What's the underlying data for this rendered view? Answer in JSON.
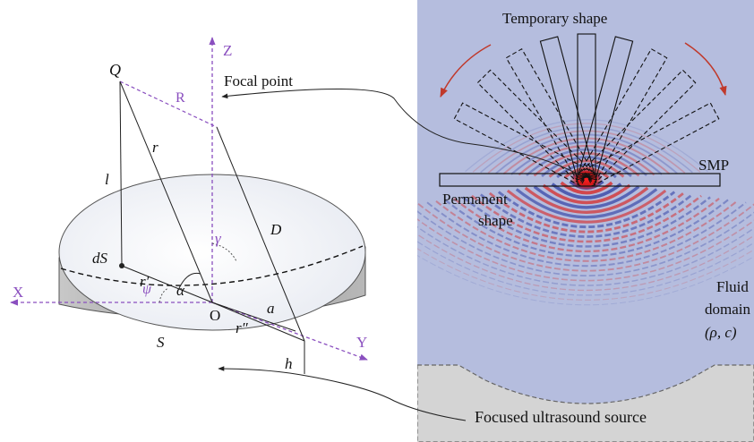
{
  "geometry_labels": {
    "Q": "Q",
    "Z": "Z",
    "X": "X",
    "Y": "Y",
    "O": "O",
    "R": "R",
    "r": "r",
    "l": "l",
    "D": "D",
    "gamma": "γ",
    "alpha": "α",
    "psi": "ψ",
    "dS": "dS",
    "r_prime": "r′",
    "r_double_prime": "r″",
    "a": "a",
    "S": "S",
    "h": "h"
  },
  "annotations": {
    "focal_point": "Focal point",
    "temporary_shape": "Temporary shape",
    "smp": "SMP",
    "permanent_shape_line1": "Permanent",
    "permanent_shape_line2": "shape",
    "fluid_line1": "Fluid",
    "fluid_line2": "domain",
    "fluid_params": "(ρ, c)",
    "source": "Focused ultrasound source"
  },
  "colors": {
    "axis": "#8a4fbf",
    "field_bg": "#b5bdde",
    "wave_red": "#d63030",
    "wave_blue": "#3848a8",
    "arrow_red": "#c0392b",
    "source_fill": "#d4d4d4",
    "disc_top": "#f4f6fa",
    "disc_side": "#a9a9a9"
  }
}
